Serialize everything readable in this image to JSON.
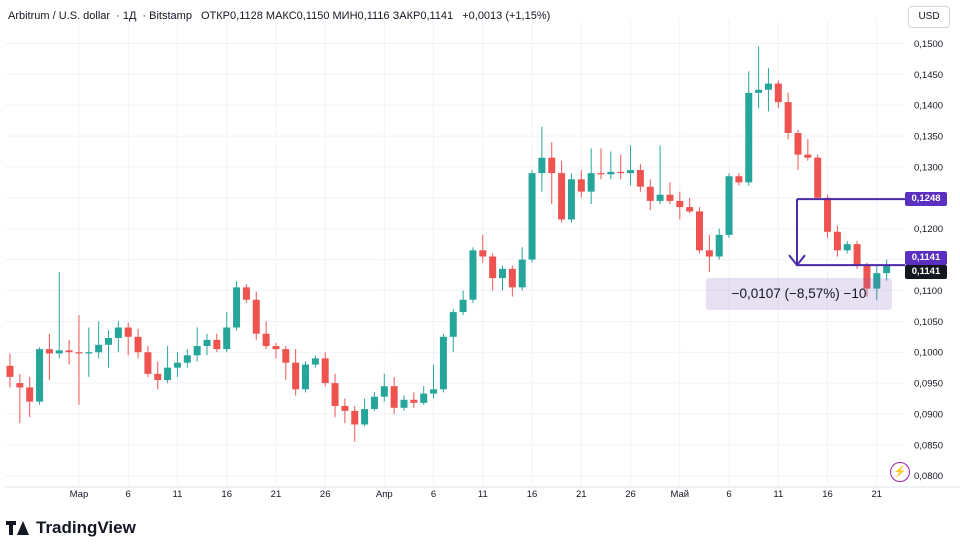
{
  "header": {
    "symbol": "Arbitrum / U.S. dollar",
    "interval": "1Д",
    "exchange": "Bitstamp",
    "ohlc": "ОТКР0,1128  МАКС0,1150  МИН0,1116  ЗАКР0,1141",
    "change": "+0,0013 (+1,15%)"
  },
  "currency_button": "USD",
  "brand": "TradingView",
  "measure_label": "−0,0107 (−8,57%) −10",
  "price_labels": [
    {
      "text": "0,1248",
      "value": 0.1248,
      "color": "#5b2fbf"
    },
    {
      "text": "0,1141",
      "value": 0.1141,
      "color": "#5b2fbf"
    },
    {
      "text": "0,1141",
      "value": 0.1141,
      "color": "#131722"
    }
  ],
  "colors": {
    "up": "#26a69a",
    "down": "#ef5350",
    "accent": "#4a2aa6",
    "grid": "#f0f3fa"
  },
  "icons": {
    "alert": "bolt-icon"
  },
  "chart_data": {
    "type": "candlestick",
    "y_axis_ticks": [
      "0,1500",
      "0,1450",
      "0,1400",
      "0,1350",
      "0,1300",
      "0,1250",
      "0,1200",
      "0,1150",
      "0,1100",
      "0,1050",
      "0,1000",
      "0,0950",
      "0,0900",
      "0,0850",
      "0,0800"
    ],
    "ylim": [
      0.0785,
      0.1525
    ],
    "x_axis_ticks": [
      {
        "label": "Мар",
        "index": 7
      },
      {
        "label": "6",
        "index": 12
      },
      {
        "label": "11",
        "index": 17
      },
      {
        "label": "16",
        "index": 22
      },
      {
        "label": "21",
        "index": 27
      },
      {
        "label": "26",
        "index": 32
      },
      {
        "label": "Апр",
        "index": 38
      },
      {
        "label": "6",
        "index": 43
      },
      {
        "label": "11",
        "index": 48
      },
      {
        "label": "16",
        "index": 53
      },
      {
        "label": "21",
        "index": 58
      },
      {
        "label": "26",
        "index": 63
      },
      {
        "label": "Май",
        "index": 68
      },
      {
        "label": "6",
        "index": 73
      },
      {
        "label": "11",
        "index": 78
      },
      {
        "label": "16",
        "index": 83
      },
      {
        "label": "21",
        "index": 88
      }
    ],
    "candles": [
      [
        0.0978,
        0.0998,
        0.0943,
        0.096
      ],
      [
        0.095,
        0.0965,
        0.0885,
        0.0943
      ],
      [
        0.0943,
        0.096,
        0.0895,
        0.092
      ],
      [
        0.092,
        0.1008,
        0.0915,
        0.1005
      ],
      [
        0.1005,
        0.103,
        0.0955,
        0.0998
      ],
      [
        0.0998,
        0.113,
        0.099,
        0.1003
      ],
      [
        0.1003,
        0.102,
        0.098,
        0.1
      ],
      [
        0.1,
        0.106,
        0.0915,
        0.0998
      ],
      [
        0.0998,
        0.104,
        0.096,
        0.1
      ],
      [
        0.1,
        0.105,
        0.099,
        0.1012
      ],
      [
        0.1012,
        0.1035,
        0.0975,
        0.1023
      ],
      [
        0.1023,
        0.105,
        0.1,
        0.104
      ],
      [
        0.104,
        0.1048,
        0.0995,
        0.1025
      ],
      [
        0.1025,
        0.1038,
        0.099,
        0.1
      ],
      [
        0.1,
        0.101,
        0.096,
        0.0965
      ],
      [
        0.0965,
        0.0985,
        0.094,
        0.0955
      ],
      [
        0.0955,
        0.101,
        0.095,
        0.0975
      ],
      [
        0.0975,
        0.1,
        0.096,
        0.0983
      ],
      [
        0.0983,
        0.1005,
        0.0975,
        0.0995
      ],
      [
        0.0995,
        0.104,
        0.0985,
        0.101
      ],
      [
        0.101,
        0.103,
        0.0995,
        0.102
      ],
      [
        0.102,
        0.103,
        0.1,
        0.1005
      ],
      [
        0.1005,
        0.1065,
        0.1,
        0.104
      ],
      [
        0.104,
        0.1115,
        0.1035,
        0.1105
      ],
      [
        0.1105,
        0.111,
        0.108,
        0.1085
      ],
      [
        0.1085,
        0.1098,
        0.102,
        0.103
      ],
      [
        0.103,
        0.105,
        0.1005,
        0.101
      ],
      [
        0.101,
        0.1015,
        0.099,
        0.1005
      ],
      [
        0.1005,
        0.101,
        0.0955,
        0.0983
      ],
      [
        0.0983,
        0.1005,
        0.093,
        0.094
      ],
      [
        0.094,
        0.0985,
        0.0935,
        0.098
      ],
      [
        0.098,
        0.0995,
        0.0975,
        0.099
      ],
      [
        0.099,
        0.1,
        0.0945,
        0.095
      ],
      [
        0.095,
        0.0965,
        0.0895,
        0.0913
      ],
      [
        0.0913,
        0.0925,
        0.0885,
        0.0905
      ],
      [
        0.0905,
        0.0913,
        0.0855,
        0.0883
      ],
      [
        0.0883,
        0.0925,
        0.088,
        0.0908
      ],
      [
        0.0908,
        0.0935,
        0.0905,
        0.0928
      ],
      [
        0.0928,
        0.0965,
        0.092,
        0.0945
      ],
      [
        0.0945,
        0.096,
        0.09,
        0.091
      ],
      [
        0.091,
        0.093,
        0.0905,
        0.0923
      ],
      [
        0.0923,
        0.0935,
        0.091,
        0.0918
      ],
      [
        0.0918,
        0.0945,
        0.0915,
        0.0933
      ],
      [
        0.0933,
        0.098,
        0.0925,
        0.094
      ],
      [
        0.094,
        0.103,
        0.0935,
        0.1025
      ],
      [
        0.1025,
        0.107,
        0.1,
        0.1065
      ],
      [
        0.1065,
        0.11,
        0.106,
        0.1085
      ],
      [
        0.1085,
        0.117,
        0.108,
        0.1165
      ],
      [
        0.1165,
        0.119,
        0.1145,
        0.1155
      ],
      [
        0.1155,
        0.116,
        0.11,
        0.112
      ],
      [
        0.112,
        0.114,
        0.11,
        0.1135
      ],
      [
        0.1135,
        0.114,
        0.109,
        0.1105
      ],
      [
        0.1105,
        0.117,
        0.11,
        0.115
      ],
      [
        0.115,
        0.1295,
        0.1145,
        0.129
      ],
      [
        0.129,
        0.1365,
        0.126,
        0.1315
      ],
      [
        0.1315,
        0.134,
        0.124,
        0.129
      ],
      [
        0.129,
        0.131,
        0.121,
        0.1215
      ],
      [
        0.1215,
        0.129,
        0.121,
        0.128
      ],
      [
        0.128,
        0.1295,
        0.125,
        0.126
      ],
      [
        0.126,
        0.133,
        0.124,
        0.129
      ],
      [
        0.129,
        0.133,
        0.128,
        0.1288
      ],
      [
        0.1288,
        0.1325,
        0.128,
        0.1292
      ],
      [
        0.1292,
        0.132,
        0.128,
        0.129
      ],
      [
        0.129,
        0.1335,
        0.127,
        0.1295
      ],
      [
        0.1295,
        0.1305,
        0.126,
        0.1268
      ],
      [
        0.1268,
        0.128,
        0.123,
        0.1245
      ],
      [
        0.1245,
        0.1335,
        0.124,
        0.1255
      ],
      [
        0.1255,
        0.1275,
        0.124,
        0.1245
      ],
      [
        0.1245,
        0.126,
        0.1215,
        0.1235
      ],
      [
        0.1235,
        0.125,
        0.1225,
        0.1228
      ],
      [
        0.1228,
        0.1235,
        0.116,
        0.1165
      ],
      [
        0.1165,
        0.119,
        0.113,
        0.1155
      ],
      [
        0.1155,
        0.12,
        0.115,
        0.119
      ],
      [
        0.119,
        0.129,
        0.1185,
        0.1285
      ],
      [
        0.1285,
        0.129,
        0.127,
        0.1275
      ],
      [
        0.1275,
        0.1455,
        0.127,
        0.142
      ],
      [
        0.142,
        0.1495,
        0.1395,
        0.1425
      ],
      [
        0.1425,
        0.146,
        0.139,
        0.1435
      ],
      [
        0.1435,
        0.144,
        0.1395,
        0.1405
      ],
      [
        0.1405,
        0.142,
        0.1345,
        0.1355
      ],
      [
        0.1355,
        0.136,
        0.1295,
        0.132
      ],
      [
        0.132,
        0.1345,
        0.131,
        0.1315
      ],
      [
        0.1315,
        0.132,
        0.125,
        0.125
      ],
      [
        0.125,
        0.1255,
        0.1185,
        0.1195
      ],
      [
        0.1195,
        0.1205,
        0.1155,
        0.1165
      ],
      [
        0.1165,
        0.118,
        0.116,
        0.1175
      ],
      [
        0.1175,
        0.118,
        0.1135,
        0.114
      ],
      [
        0.114,
        0.1145,
        0.109,
        0.1103
      ],
      [
        0.1103,
        0.114,
        0.1085,
        0.1128
      ],
      [
        0.1128,
        0.115,
        0.1116,
        0.1141
      ]
    ]
  }
}
